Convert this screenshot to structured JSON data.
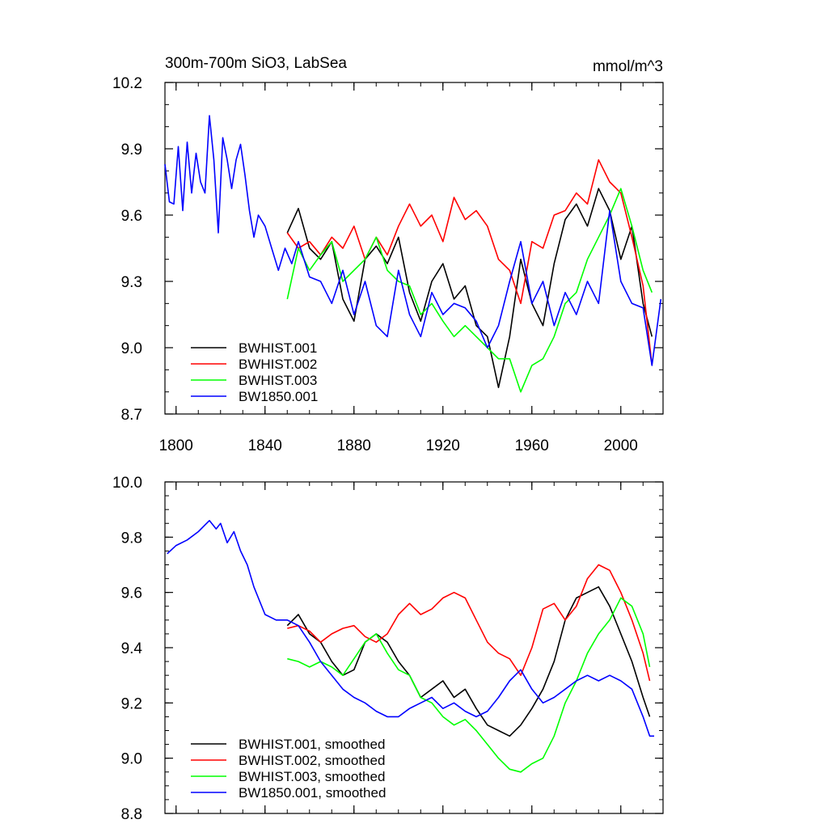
{
  "chart_data": [
    {
      "type": "line",
      "title": "300m-700m SiO3, LabSea",
      "units": "mmol/m^3",
      "xlim": [
        1795,
        2019
      ],
      "ylim": [
        8.7,
        10.2
      ],
      "xticks": [
        "1800",
        "1840",
        "1880",
        "1920",
        "1960",
        "2000"
      ],
      "yticks": [
        "8.7",
        "9.0",
        "9.3",
        "9.6",
        "9.9",
        "10.2"
      ],
      "legend_position": "bottom-left",
      "series": [
        {
          "name": "BWHIST.001",
          "color": "#000000",
          "x": [
            1850,
            1855,
            1860,
            1865,
            1870,
            1875,
            1880,
            1885,
            1890,
            1895,
            1900,
            1905,
            1910,
            1915,
            1920,
            1925,
            1930,
            1935,
            1940,
            1945,
            1950,
            1955,
            1960,
            1965,
            1970,
            1975,
            1980,
            1985,
            1990,
            1995,
            2000,
            2005,
            2010,
            2014
          ],
          "y": [
            9.52,
            9.63,
            9.45,
            9.4,
            9.48,
            9.22,
            9.12,
            9.4,
            9.46,
            9.38,
            9.5,
            9.25,
            9.12,
            9.3,
            9.38,
            9.22,
            9.28,
            9.1,
            9.05,
            8.82,
            9.05,
            9.4,
            9.2,
            9.1,
            9.38,
            9.58,
            9.65,
            9.55,
            9.72,
            9.62,
            9.4,
            9.55,
            9.2,
            9.05
          ]
        },
        {
          "name": "BWHIST.002",
          "color": "#ff0000",
          "x": [
            1850,
            1855,
            1860,
            1865,
            1870,
            1875,
            1880,
            1885,
            1890,
            1895,
            1900,
            1905,
            1910,
            1915,
            1920,
            1925,
            1930,
            1935,
            1940,
            1945,
            1950,
            1955,
            1960,
            1965,
            1970,
            1975,
            1980,
            1985,
            1990,
            1995,
            2000,
            2005,
            2010,
            2014
          ],
          "y": [
            9.52,
            9.45,
            9.48,
            9.42,
            9.5,
            9.45,
            9.55,
            9.4,
            9.5,
            9.42,
            9.55,
            9.65,
            9.55,
            9.6,
            9.48,
            9.68,
            9.58,
            9.62,
            9.55,
            9.4,
            9.35,
            9.2,
            9.48,
            9.45,
            9.6,
            9.62,
            9.7,
            9.65,
            9.85,
            9.75,
            9.7,
            9.5,
            9.28,
            8.92
          ]
        },
        {
          "name": "BWHIST.003",
          "color": "#00ff00",
          "x": [
            1850,
            1855,
            1860,
            1865,
            1870,
            1875,
            1880,
            1885,
            1890,
            1895,
            1900,
            1905,
            1910,
            1915,
            1920,
            1925,
            1930,
            1935,
            1940,
            1945,
            1950,
            1955,
            1960,
            1965,
            1970,
            1975,
            1980,
            1985,
            1990,
            1995,
            2000,
            2005,
            2010,
            2014
          ],
          "y": [
            9.22,
            9.45,
            9.35,
            9.42,
            9.48,
            9.3,
            9.35,
            9.4,
            9.5,
            9.35,
            9.3,
            9.28,
            9.15,
            9.2,
            9.12,
            9.05,
            9.1,
            9.05,
            9.0,
            8.95,
            8.95,
            8.8,
            8.92,
            8.95,
            9.05,
            9.2,
            9.25,
            9.4,
            9.5,
            9.6,
            9.72,
            9.55,
            9.35,
            9.25
          ]
        },
        {
          "name": "BW1850.001",
          "color": "#0000ff",
          "x": [
            1795,
            1797,
            1799,
            1801,
            1803,
            1805,
            1807,
            1809,
            1811,
            1813,
            1815,
            1817,
            1819,
            1821,
            1823,
            1825,
            1827,
            1829,
            1831,
            1833,
            1835,
            1837,
            1840,
            1843,
            1846,
            1849,
            1852,
            1855,
            1860,
            1865,
            1870,
            1875,
            1880,
            1885,
            1890,
            1895,
            1900,
            1905,
            1910,
            1915,
            1920,
            1925,
            1930,
            1935,
            1940,
            1945,
            1950,
            1955,
            1960,
            1965,
            1970,
            1975,
            1980,
            1985,
            1990,
            1995,
            2000,
            2005,
            2010,
            2014,
            2018
          ],
          "y": [
            9.83,
            9.66,
            9.65,
            9.91,
            9.62,
            9.93,
            9.7,
            9.88,
            9.75,
            9.7,
            10.05,
            9.85,
            9.52,
            9.95,
            9.85,
            9.72,
            9.85,
            9.92,
            9.78,
            9.62,
            9.5,
            9.6,
            9.55,
            9.45,
            9.35,
            9.45,
            9.38,
            9.48,
            9.32,
            9.3,
            9.2,
            9.35,
            9.15,
            9.3,
            9.1,
            9.05,
            9.35,
            9.15,
            9.05,
            9.25,
            9.15,
            9.2,
            9.18,
            9.12,
            9.0,
            9.1,
            9.3,
            9.48,
            9.2,
            9.3,
            9.1,
            9.25,
            9.15,
            9.3,
            9.2,
            9.62,
            9.3,
            9.2,
            9.18,
            8.92,
            9.22
          ]
        }
      ]
    },
    {
      "type": "line",
      "xlim": [
        1795,
        2019
      ],
      "ylim": [
        8.8,
        10.0
      ],
      "yticks": [
        "8.8",
        "9.0",
        "9.2",
        "9.4",
        "9.6",
        "9.8",
        "10.0"
      ],
      "legend_position": "bottom-left",
      "series": [
        {
          "name": "BWHIST.001, smoothed",
          "color": "#000000",
          "x": [
            1850,
            1855,
            1860,
            1865,
            1870,
            1875,
            1880,
            1885,
            1890,
            1895,
            1900,
            1905,
            1910,
            1915,
            1920,
            1925,
            1930,
            1935,
            1940,
            1945,
            1950,
            1955,
            1960,
            1965,
            1970,
            1975,
            1980,
            1985,
            1990,
            1995,
            2000,
            2005,
            2010,
            2013
          ],
          "y": [
            9.48,
            9.52,
            9.45,
            9.42,
            9.35,
            9.3,
            9.32,
            9.42,
            9.45,
            9.42,
            9.35,
            9.3,
            9.22,
            9.25,
            9.28,
            9.22,
            9.25,
            9.18,
            9.12,
            9.1,
            9.08,
            9.12,
            9.18,
            9.25,
            9.35,
            9.5,
            9.58,
            9.6,
            9.62,
            9.55,
            9.45,
            9.35,
            9.22,
            9.15
          ]
        },
        {
          "name": "BWHIST.002, smoothed",
          "color": "#ff0000",
          "x": [
            1850,
            1855,
            1860,
            1865,
            1870,
            1875,
            1880,
            1885,
            1890,
            1895,
            1900,
            1905,
            1910,
            1915,
            1920,
            1925,
            1930,
            1935,
            1940,
            1945,
            1950,
            1955,
            1960,
            1965,
            1970,
            1975,
            1980,
            1985,
            1990,
            1995,
            2000,
            2005,
            2010,
            2013
          ],
          "y": [
            9.47,
            9.48,
            9.46,
            9.42,
            9.45,
            9.47,
            9.48,
            9.44,
            9.42,
            9.45,
            9.52,
            9.56,
            9.52,
            9.54,
            9.58,
            9.6,
            9.58,
            9.5,
            9.42,
            9.38,
            9.36,
            9.3,
            9.4,
            9.54,
            9.56,
            9.5,
            9.55,
            9.65,
            9.7,
            9.68,
            9.6,
            9.5,
            9.38,
            9.28
          ]
        },
        {
          "name": "BWHIST.003, smoothed",
          "color": "#00ff00",
          "x": [
            1850,
            1855,
            1860,
            1865,
            1870,
            1875,
            1880,
            1885,
            1890,
            1895,
            1900,
            1905,
            1910,
            1915,
            1920,
            1925,
            1930,
            1935,
            1940,
            1945,
            1950,
            1955,
            1960,
            1965,
            1970,
            1975,
            1980,
            1985,
            1990,
            1995,
            2000,
            2005,
            2010,
            2013
          ],
          "y": [
            9.36,
            9.35,
            9.33,
            9.35,
            9.33,
            9.3,
            9.36,
            9.42,
            9.45,
            9.38,
            9.32,
            9.3,
            9.22,
            9.2,
            9.15,
            9.12,
            9.14,
            9.1,
            9.05,
            9.0,
            8.96,
            8.95,
            8.98,
            9.0,
            9.08,
            9.2,
            9.28,
            9.38,
            9.45,
            9.5,
            9.58,
            9.55,
            9.45,
            9.33
          ]
        },
        {
          "name": "BW1850.001, smoothed",
          "color": "#0000ff",
          "x": [
            1796,
            1800,
            1805,
            1810,
            1815,
            1818,
            1820,
            1823,
            1826,
            1829,
            1832,
            1835,
            1840,
            1845,
            1850,
            1855,
            1860,
            1865,
            1870,
            1875,
            1880,
            1885,
            1890,
            1895,
            1900,
            1905,
            1910,
            1915,
            1920,
            1925,
            1930,
            1935,
            1940,
            1945,
            1950,
            1955,
            1960,
            1965,
            1970,
            1975,
            1980,
            1985,
            1990,
            1995,
            2000,
            2005,
            2010,
            2013,
            2015
          ],
          "y": [
            9.74,
            9.77,
            9.79,
            9.82,
            9.86,
            9.83,
            9.85,
            9.78,
            9.82,
            9.75,
            9.7,
            9.62,
            9.52,
            9.5,
            9.5,
            9.48,
            9.42,
            9.35,
            9.3,
            9.25,
            9.22,
            9.2,
            9.17,
            9.15,
            9.15,
            9.18,
            9.2,
            9.22,
            9.18,
            9.2,
            9.17,
            9.15,
            9.17,
            9.22,
            9.28,
            9.32,
            9.25,
            9.2,
            9.22,
            9.25,
            9.28,
            9.3,
            9.28,
            9.3,
            9.28,
            9.25,
            9.15,
            9.08,
            9.08
          ]
        }
      ]
    }
  ]
}
